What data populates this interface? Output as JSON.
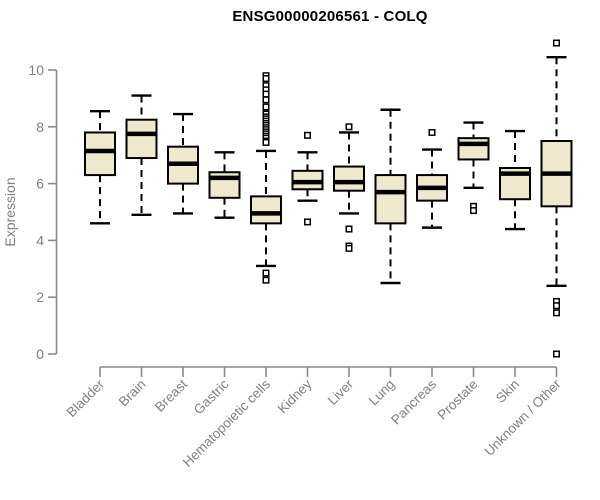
{
  "title": "ENSG00000206561 - COLQ",
  "style": {
    "background": "#ffffff",
    "box_fill": "#EEE8CD",
    "box_border": "#000000",
    "median_color": "#000000",
    "whisker_color": "#000000",
    "outlier_color": "#000000",
    "axis_color": "#8a8a8a",
    "label_color": "#808080",
    "title_color": "#000000"
  },
  "chart_data": {
    "type": "box",
    "title": "ENSG00000206561 - COLQ",
    "xlabel": "",
    "ylabel": "Expression",
    "ylim": [
      0,
      10
    ],
    "yticks": [
      0,
      2,
      4,
      6,
      8,
      10
    ],
    "grid": false,
    "legend": false,
    "categories": [
      "Bladder",
      "Brain",
      "Breast",
      "Gastric",
      "Hematopoietic cells",
      "Kidney",
      "Liver",
      "Lung",
      "Pancreas",
      "Prostate",
      "Skin",
      "Unknown / Other"
    ],
    "series": [
      {
        "name": "Bladder",
        "whisker_low": 4.6,
        "q1": 6.3,
        "median": 7.15,
        "q3": 7.8,
        "whisker_high": 8.55,
        "outliers": []
      },
      {
        "name": "Brain",
        "whisker_low": 4.9,
        "q1": 6.9,
        "median": 7.75,
        "q3": 8.25,
        "whisker_high": 9.1,
        "outliers": []
      },
      {
        "name": "Breast",
        "whisker_low": 4.95,
        "q1": 6.0,
        "median": 6.7,
        "q3": 7.3,
        "whisker_high": 8.45,
        "outliers": []
      },
      {
        "name": "Gastric",
        "whisker_low": 4.8,
        "q1": 5.5,
        "median": 6.2,
        "q3": 6.4,
        "whisker_high": 7.1,
        "outliers": []
      },
      {
        "name": "Hematopoietic cells",
        "whisker_low": 3.1,
        "q1": 4.6,
        "median": 4.95,
        "q3": 5.55,
        "whisker_high": 7.15,
        "outliers": [
          9.8,
          9.7,
          9.45,
          9.3,
          9.15,
          8.95,
          8.7,
          8.45,
          8.35,
          8.28,
          8.2,
          8.12,
          8.05,
          7.97,
          7.9,
          7.82,
          7.75,
          7.67,
          7.6,
          7.5,
          7.45,
          2.85,
          2.6
        ]
      },
      {
        "name": "Kidney",
        "whisker_low": 5.4,
        "q1": 5.8,
        "median": 6.05,
        "q3": 6.45,
        "whisker_high": 7.1,
        "outliers": [
          7.7,
          4.65
        ]
      },
      {
        "name": "Liver",
        "whisker_low": 4.95,
        "q1": 5.75,
        "median": 6.05,
        "q3": 6.6,
        "whisker_high": 7.8,
        "outliers": [
          8.0,
          4.4,
          3.8,
          3.72
        ]
      },
      {
        "name": "Lung",
        "whisker_low": 2.5,
        "q1": 4.6,
        "median": 5.7,
        "q3": 6.3,
        "whisker_high": 8.6,
        "outliers": []
      },
      {
        "name": "Pancreas",
        "whisker_low": 4.45,
        "q1": 5.4,
        "median": 5.85,
        "q3": 6.3,
        "whisker_high": 7.2,
        "outliers": [
          7.8
        ]
      },
      {
        "name": "Prostate",
        "whisker_low": 5.85,
        "q1": 6.85,
        "median": 7.4,
        "q3": 7.6,
        "whisker_high": 8.15,
        "outliers": [
          5.2,
          5.05
        ]
      },
      {
        "name": "Skin",
        "whisker_low": 4.4,
        "q1": 5.45,
        "median": 6.35,
        "q3": 6.55,
        "whisker_high": 7.85,
        "outliers": []
      },
      {
        "name": "Unknown / Other",
        "whisker_low": 2.4,
        "q1": 5.2,
        "median": 6.35,
        "q3": 7.5,
        "whisker_high": 10.45,
        "outliers": [
          10.95,
          1.85,
          1.7,
          1.45,
          0.0
        ]
      }
    ]
  }
}
